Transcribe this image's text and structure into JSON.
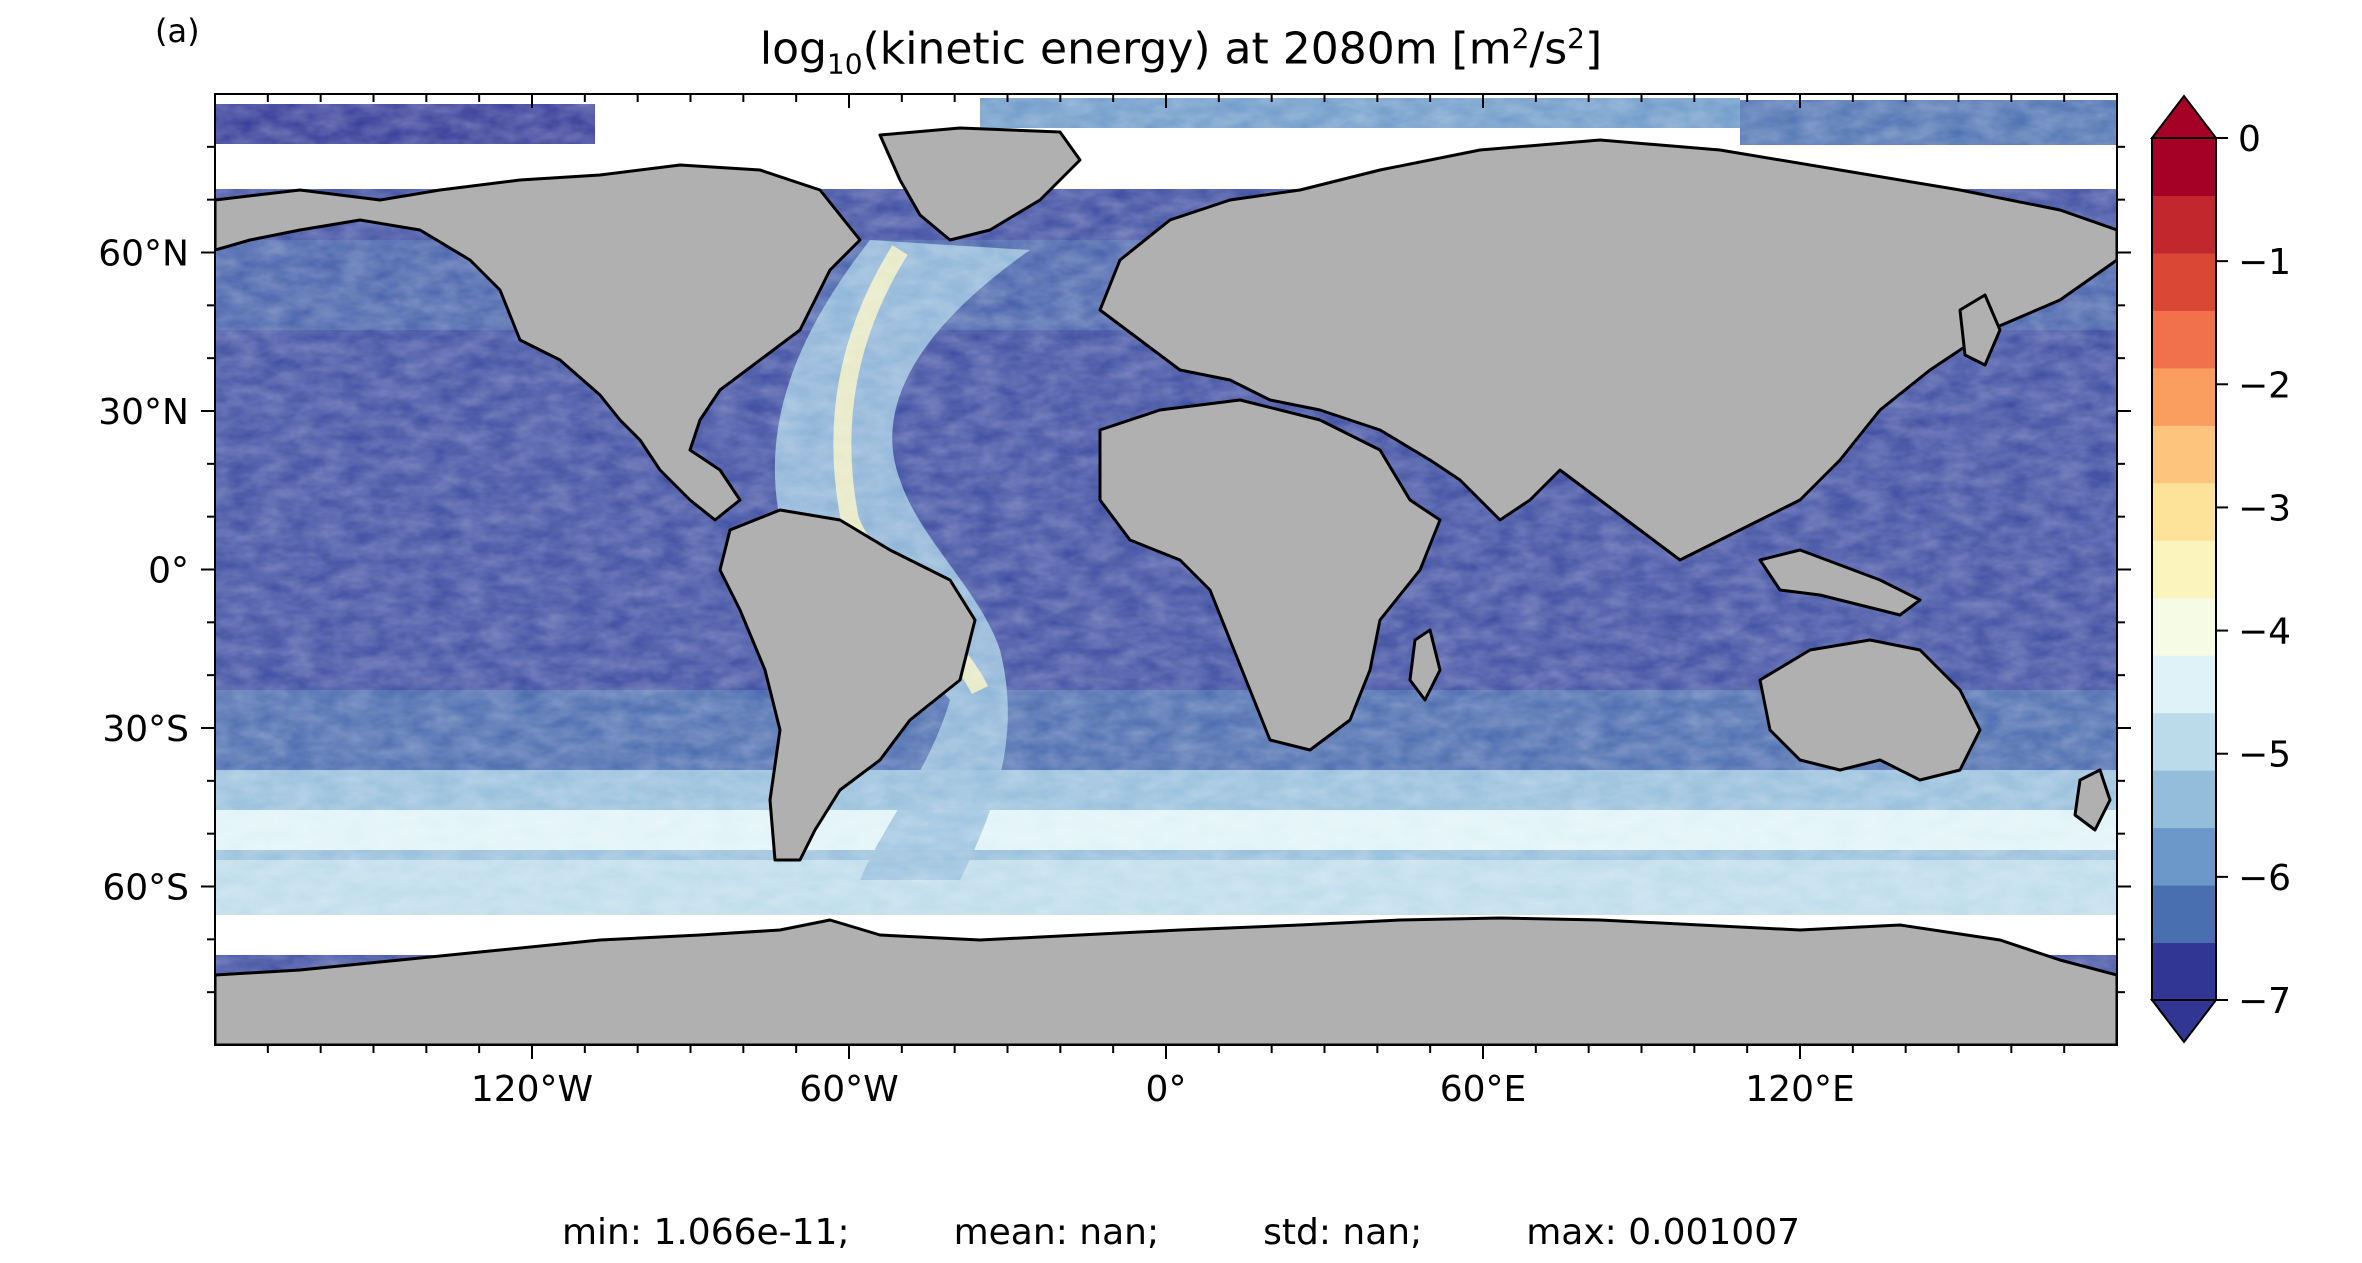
{
  "panel_label": "(a)",
  "title": {
    "prefix": "log",
    "sub": "10",
    "middle": "(kinetic energy) at 2080m [m",
    "sup1": "2",
    "slash": "/s",
    "sup2": "2",
    "suffix": "]"
  },
  "axes": {
    "lat_ticks": [
      {
        "value": 60,
        "label": "60°N"
      },
      {
        "value": 30,
        "label": "30°N"
      },
      {
        "value": 0,
        "label": "0°"
      },
      {
        "value": -30,
        "label": "30°S"
      },
      {
        "value": -60,
        "label": "60°S"
      }
    ],
    "lon_ticks": [
      {
        "value": -120,
        "label": "120°W"
      },
      {
        "value": -60,
        "label": "60°W"
      },
      {
        "value": 0,
        "label": "0°"
      },
      {
        "value": 60,
        "label": "60°E"
      },
      {
        "value": 120,
        "label": "120°E"
      }
    ],
    "lon_range": [
      -180,
      180
    ],
    "lat_range": [
      -90,
      90
    ]
  },
  "colorbar": {
    "labels": [
      "0",
      "−1",
      "−2",
      "−3",
      "−4",
      "−5",
      "−6",
      "−7"
    ],
    "range": [
      -7,
      0
    ],
    "extend": "both",
    "colors": [
      "#313695",
      "#4a6fb0",
      "#6b98c8",
      "#94bddb",
      "#bcdbea",
      "#dff2f7",
      "#f6fbe6",
      "#fbf5bd",
      "#fde39a",
      "#fdc47e",
      "#f99e5f",
      "#f0714b",
      "#db4735",
      "#c1272d",
      "#a50026"
    ]
  },
  "colors": {
    "land": "#b0b0b0",
    "coast": "#000000",
    "ocean_low": "#313695",
    "ocean_high": "#fbf5bd"
  },
  "stats": {
    "min": "min: 1.066e-11;",
    "mean": "mean: nan;",
    "std": "std: nan;",
    "max": "max: 0.001007"
  }
}
